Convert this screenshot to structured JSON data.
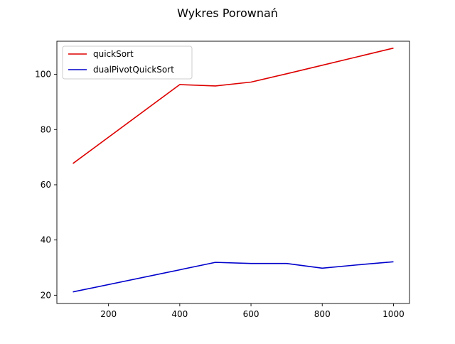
{
  "chart_data": {
    "type": "line",
    "title": "Wykres Porownań",
    "xlabel": "",
    "ylabel": "",
    "xlim": [
      55,
      1045
    ],
    "ylim": [
      17,
      112
    ],
    "xticks": [
      200,
      400,
      600,
      800,
      1000
    ],
    "yticks": [
      20,
      40,
      60,
      80,
      100
    ],
    "grid": false,
    "legend": "top-left",
    "series": [
      {
        "name": "quickSort",
        "color": "#dd0000",
        "x": [
          100,
          400,
          500,
          600,
          700,
          800,
          900,
          1000
        ],
        "y": [
          67.7,
          96.3,
          95.8,
          97.2,
          100.2,
          103.3,
          106.4,
          109.5
        ]
      },
      {
        "name": "dualPivotQuickSort",
        "color": "#0000cc",
        "x": [
          100,
          400,
          500,
          600,
          700,
          800,
          900,
          1000
        ],
        "y": [
          21.2,
          29.2,
          31.9,
          31.5,
          31.5,
          29.8,
          31.0,
          32.1
        ]
      }
    ]
  }
}
